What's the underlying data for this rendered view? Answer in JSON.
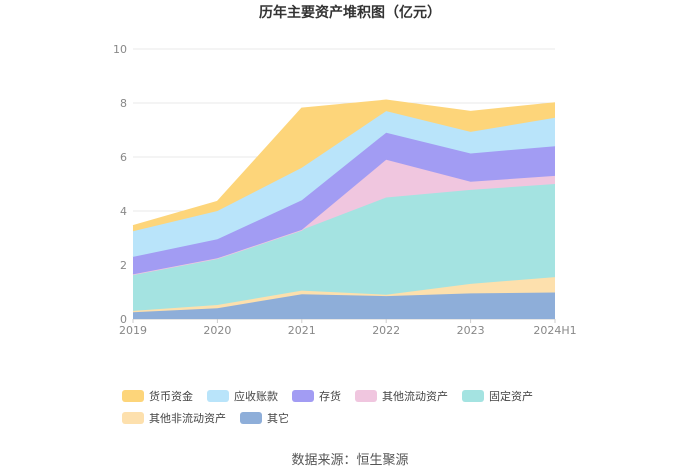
{
  "chart_data": {
    "type": "area",
    "stacked": true,
    "title": "历年主要资产堆积图（亿元）",
    "categories": [
      "2019",
      "2020",
      "2021",
      "2022",
      "2023",
      "2024H1"
    ],
    "ylim": [
      0,
      10
    ],
    "yticks": [
      "0",
      "2",
      "4",
      "6",
      "8",
      "10"
    ],
    "grid": true,
    "legend_position": "bottom",
    "series": [
      {
        "name": "其它",
        "color": "#8eaed9",
        "values": [
          0.25,
          0.4,
          0.92,
          0.85,
          0.95,
          0.98
        ]
      },
      {
        "name": "其他非流动资产",
        "color": "#fde0ad",
        "values": [
          0.05,
          0.12,
          0.13,
          0.05,
          0.35,
          0.57
        ]
      },
      {
        "name": "固定资产",
        "color": "#a4e3e1",
        "values": [
          1.35,
          1.73,
          2.25,
          3.6,
          3.48,
          3.45
        ]
      },
      {
        "name": "其他流动资产",
        "color": "#f0c6df",
        "values": [
          0.0,
          0.0,
          0.0,
          1.4,
          0.3,
          0.3
        ]
      },
      {
        "name": "存货",
        "color": "#a29cf3",
        "values": [
          0.65,
          0.7,
          1.1,
          1.0,
          1.05,
          1.1
        ]
      },
      {
        "name": "应收账款",
        "color": "#b9e4fa",
        "values": [
          0.95,
          1.05,
          1.2,
          0.8,
          0.8,
          1.05
        ]
      },
      {
        "name": "货币资金",
        "color": "#fdd57a",
        "values": [
          0.2,
          0.35,
          2.2,
          0.4,
          0.75,
          0.55
        ]
      }
    ],
    "legend_order": [
      "货币资金",
      "应收账款",
      "存货",
      "其他流动资产",
      "固定资产",
      "其他非流动资产",
      "其它"
    ]
  },
  "source": "数据来源：恒生聚源"
}
